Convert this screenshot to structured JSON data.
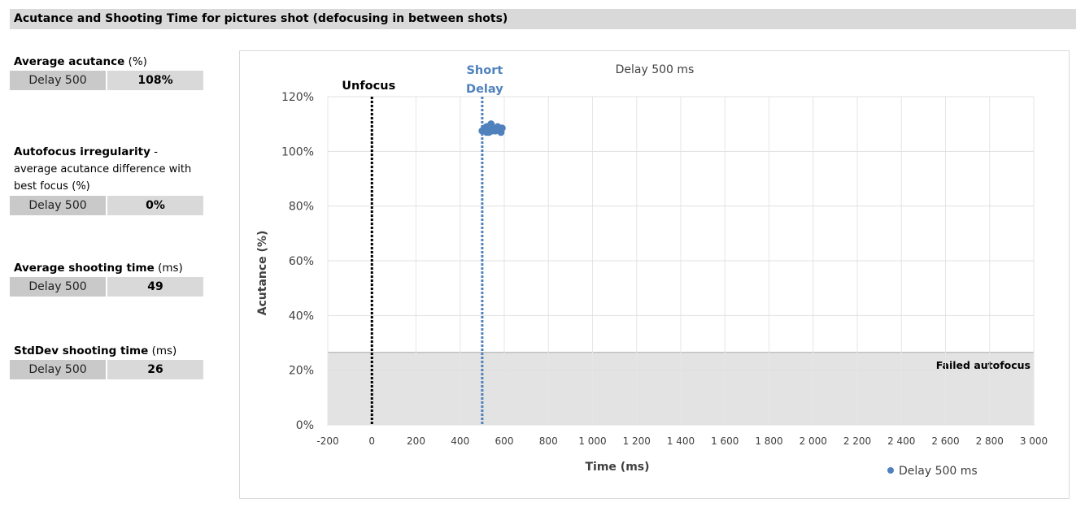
{
  "header": {
    "title": "Acutance and Shooting Time for pictures shot (defocusing in between shots)"
  },
  "metrics": {
    "avg_acutance": {
      "title": "Average acutance",
      "unit": "(%)",
      "label": "Delay 500",
      "value": "108%"
    },
    "af_irregularity": {
      "title": "Autofocus irregularity",
      "desc": "- average acutance difference with best focus",
      "unit": "(%)",
      "label": "Delay 500",
      "value": "0%"
    },
    "avg_shooting": {
      "title": "Average shooting time",
      "unit": "(ms)",
      "label": "Delay 500",
      "value": "49"
    },
    "std_shooting": {
      "title": "StdDev shooting time",
      "unit": "(ms)",
      "label": "Delay 500",
      "value": "26"
    }
  },
  "chart_data": {
    "type": "scatter",
    "title": "Delay 500 ms",
    "xlabel": "Time (ms)",
    "ylabel": "Acutance (%)",
    "xlim": [
      -200,
      3000
    ],
    "ylim": [
      0,
      120
    ],
    "x_ticks": [
      "-200",
      "0",
      "200",
      "400",
      "600",
      "800",
      "1 000",
      "1 200",
      "1 400",
      "1 600",
      "1 800",
      "2 000",
      "2 200",
      "2 400",
      "2 600",
      "2 800",
      "3 000"
    ],
    "y_ticks": [
      "0%",
      "20%",
      "40%",
      "60%",
      "80%",
      "100%",
      "120%"
    ],
    "grid": true,
    "legend_position": "bottom-right",
    "series": [
      {
        "name": "Delay 500 ms",
        "color": "#4f81bd",
        "points": [
          {
            "x": 500,
            "y": 107.5
          },
          {
            "x": 510,
            "y": 108.5
          },
          {
            "x": 520,
            "y": 109
          },
          {
            "x": 530,
            "y": 107
          },
          {
            "x": 540,
            "y": 110
          },
          {
            "x": 550,
            "y": 108
          },
          {
            "x": 560,
            "y": 107.5
          },
          {
            "x": 570,
            "y": 109
          },
          {
            "x": 580,
            "y": 108
          },
          {
            "x": 585,
            "y": 107
          },
          {
            "x": 590,
            "y": 108.5
          },
          {
            "x": 520,
            "y": 107
          },
          {
            "x": 545,
            "y": 107.5
          },
          {
            "x": 565,
            "y": 108.5
          }
        ]
      }
    ],
    "markers": [
      {
        "label": "Unfocus",
        "x": 0,
        "color": "#000000"
      },
      {
        "label": "Short Delay",
        "label_lines": [
          "Short",
          "Delay"
        ],
        "x": 500,
        "color": "#4f81bd"
      }
    ],
    "failed_region": {
      "label": "Failed autofocus",
      "y_max": 26.5,
      "color": "#e3e3e3"
    }
  }
}
